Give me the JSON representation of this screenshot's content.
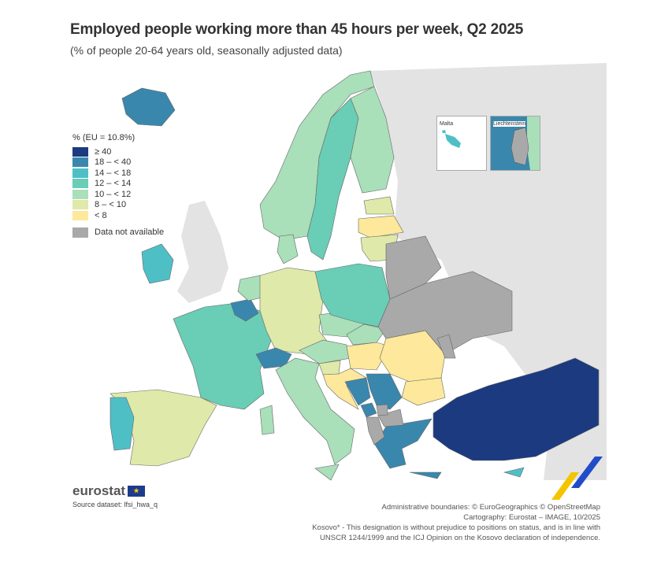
{
  "title": "Employed people working more than 45 hours per week, Q2 2025",
  "subtitle": "(% of people 20-64 years old, seasonally adjusted data)",
  "legend": {
    "title": "% (EU = 10.8%)",
    "classes": [
      {
        "label": "≥ 40",
        "color": "#1b3a80"
      },
      {
        "label": "18 – < 40",
        "color": "#3a87ad"
      },
      {
        "label": "14 – < 18",
        "color": "#4fbfc6"
      },
      {
        "label": "12 – < 14",
        "color": "#6acdb6"
      },
      {
        "label": "10 – < 12",
        "color": "#a9dfb9"
      },
      {
        "label": "8 – < 10",
        "color": "#dfe9a9"
      },
      {
        "label": "< 8",
        "color": "#fde89b"
      }
    ],
    "na": {
      "label": "Data not available",
      "color": "#a9a9a9"
    }
  },
  "countries": {
    "Iceland": 1,
    "Norway": 4,
    "Sweden": 3,
    "Finland": 4,
    "Estonia": 5,
    "Latvia": 6,
    "Lithuania": 5,
    "Ireland": 2,
    "France": 3,
    "Spain": 5,
    "Portugal": 2,
    "Belgium": 1,
    "Netherlands": 4,
    "Germany": 5,
    "Denmark": 4,
    "Switzerland": 1,
    "Italy": 4,
    "Austria": 4,
    "Czechia": 4,
    "Poland": 3,
    "Slovakia": 4,
    "Hungary": 6,
    "Slovenia": 5,
    "Croatia": 6,
    "Romania": 6,
    "Bulgaria": 6,
    "Serbia": 1,
    "Bosnia and Herzegovina": 1,
    "Montenegro": 1,
    "Greece": 1,
    "Turkey": 0,
    "Cyprus": 2,
    "Malta": 2,
    "Liechtenstein": 1,
    "Albania": "na",
    "North Macedonia": "na",
    "Kosovo*": "na",
    "Ukraine": "na",
    "Belarus": "na",
    "Moldova": "na"
  },
  "insets": {
    "malta": "Malta",
    "liechtenstein": "Liechtenstein"
  },
  "logo": "eurostat",
  "source": "Source dataset: lfsi_hwa_q",
  "credits": [
    "Administrative boundaries: © EuroGeographics © OpenStreetMap",
    "Cartography: Eurostat – IMAGE, 10/2025",
    "Kosovo* - This designation is without prejudice to positions on status, and is in line with",
    "UNSCR 1244/1999 and the ICJ Opinion on the Kosovo declaration of independence."
  ]
}
